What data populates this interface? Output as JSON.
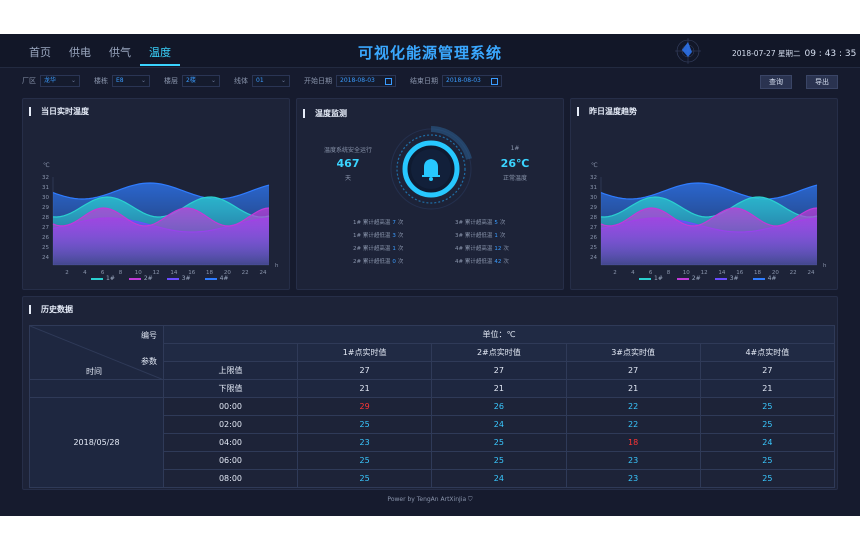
{
  "nav": {
    "items": [
      "首页",
      "供电",
      "供气",
      "温度"
    ],
    "active": 3
  },
  "title": "可视化能源管理系统",
  "datetime": {
    "date": "2018-07-27 星期二",
    "time": "09 : 43 : 35"
  },
  "filters": {
    "zone_label": "厂区",
    "zone_value": "龙华",
    "building_label": "楼栋",
    "building_value": "E8",
    "floor_label": "楼层",
    "floor_value": "2楼",
    "line_label": "线体",
    "line_value": "01",
    "start_label": "开始日期",
    "start_value": "2018-08-03",
    "end_label": "结束日期",
    "end_value": "2018-08-03",
    "query_label": "查询",
    "export_label": "导出"
  },
  "today": {
    "title": "当日实时温度",
    "unit": "℃",
    "y_ticks": [
      "32",
      "31",
      "30",
      "29",
      "28",
      "27",
      "26",
      "25",
      "24"
    ],
    "x_ticks": [
      "2",
      "4",
      "6",
      "8",
      "10",
      "12",
      "14",
      "16",
      "18",
      "20",
      "22",
      "24"
    ],
    "x_unit": "h",
    "legend": [
      "1#",
      "2#",
      "3#",
      "4#"
    ]
  },
  "yesterday": {
    "title": "昨日温度趋势",
    "unit": "℃",
    "y_ticks": [
      "32",
      "31",
      "30",
      "29",
      "28",
      "27",
      "26",
      "25",
      "24"
    ],
    "x_ticks": [
      "2",
      "4",
      "6",
      "8",
      "10",
      "12",
      "14",
      "16",
      "18",
      "20",
      "22",
      "24"
    ],
    "x_unit": "h",
    "legend": [
      "1#",
      "2#",
      "3#",
      "4#"
    ]
  },
  "monitor": {
    "title": "温度监测",
    "safe_label": "温度系统安全运行",
    "safe_days": "467",
    "days_unit": "天",
    "sensor_label": "1#",
    "sensor_temp": "26℃",
    "sensor_status": "正常温度",
    "alarms_left": [
      {
        "label": "1# 累计超高温",
        "count": "7",
        "unit": "次"
      },
      {
        "label": "1# 累计超低温",
        "count": "3",
        "unit": "次"
      },
      {
        "label": "2# 累计超高温",
        "count": "1",
        "unit": "次"
      },
      {
        "label": "2# 累计超低温",
        "count": "0",
        "unit": "次"
      }
    ],
    "alarms_right": [
      {
        "label": "3# 累计超高温",
        "count": "5",
        "unit": "次"
      },
      {
        "label": "3# 累计超低温",
        "count": "1",
        "unit": "次"
      },
      {
        "label": "4# 累计超高温",
        "count": "12",
        "unit": "次"
      },
      {
        "label": "4# 累计超低温",
        "count": "42",
        "unit": "次"
      }
    ]
  },
  "history": {
    "title": "历史数据",
    "unit_label": "单位：℃",
    "corner_id": "编号",
    "corner_param": "参数",
    "corner_time": "时间",
    "columns": [
      "1#点实时值",
      "2#点实时值",
      "3#点实时值",
      "4#点实时值"
    ],
    "upper_label": "上限值",
    "upper": [
      "27",
      "27",
      "27",
      "27"
    ],
    "lower_label": "下限值",
    "lower": [
      "21",
      "21",
      "21",
      "21"
    ],
    "date": "2018/05/28",
    "rows": [
      {
        "time": "00:00",
        "values": [
          "29",
          "26",
          "22",
          "25"
        ],
        "alert": [
          true,
          false,
          false,
          false
        ]
      },
      {
        "time": "02:00",
        "values": [
          "25",
          "24",
          "22",
          "25"
        ],
        "alert": [
          false,
          false,
          false,
          false
        ]
      },
      {
        "time": "04:00",
        "values": [
          "23",
          "25",
          "18",
          "24"
        ],
        "alert": [
          false,
          false,
          true,
          false
        ]
      },
      {
        "time": "06:00",
        "values": [
          "25",
          "25",
          "23",
          "25"
        ],
        "alert": [
          false,
          false,
          false,
          false
        ]
      },
      {
        "time": "08:00",
        "values": [
          "25",
          "24",
          "23",
          "25"
        ],
        "alert": [
          false,
          false,
          false,
          false
        ]
      }
    ]
  },
  "footer": "Power by TengAn ArtXinJia",
  "colors": {
    "s1": "#2bd0d0",
    "s2": "#c23ad8",
    "s3": "#6a4cff",
    "s4": "#2f7cff",
    "accent": "#3ad4ff",
    "alert": "#ff3535"
  }
}
